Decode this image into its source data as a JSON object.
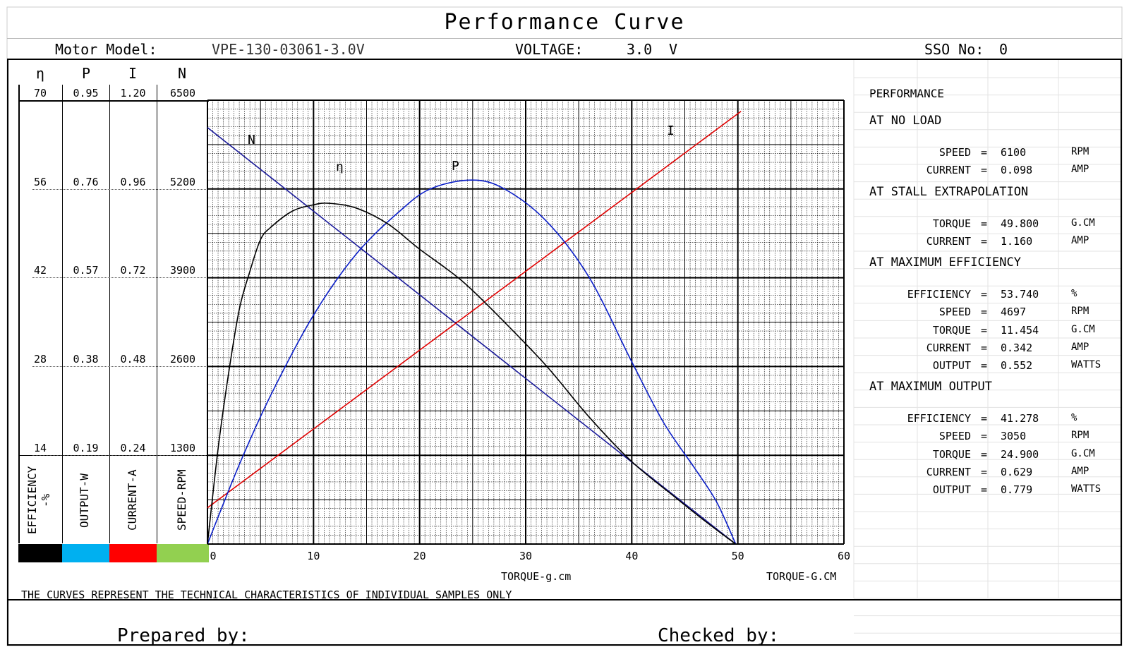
{
  "header": {
    "title": "Performance Curve",
    "model_label": "Motor Model:",
    "model_value": "VPE-130-03061-3.0V",
    "voltage_label": "VOLTAGE:",
    "voltage_value": "3.0",
    "voltage_unit": "V",
    "sso_label": "SSO No:",
    "sso_value": "0"
  },
  "axes_left": {
    "headers": [
      "η",
      "P",
      "I",
      "N"
    ],
    "rows": [
      [
        "70",
        "0.95",
        "1.20",
        "6500"
      ],
      [
        "56",
        "0.76",
        "0.96",
        "5200"
      ],
      [
        "42",
        "0.57",
        "0.72",
        "3900"
      ],
      [
        "28",
        "0.38",
        "0.48",
        "2600"
      ],
      [
        "14",
        "0.19",
        "0.24",
        "1300"
      ]
    ],
    "legend": [
      "EFFICIENCY -%",
      "OUTPUT-W",
      "CURRENT-A",
      "SPEED-RPM"
    ],
    "legend_colors": [
      "#000000",
      "#00b0f0",
      "#ff0000",
      "#92d050"
    ]
  },
  "chart_data": {
    "type": "line",
    "x_ticks": [
      "0",
      "10",
      "20",
      "30",
      "40",
      "50",
      "60"
    ],
    "xlim": [
      0,
      60
    ],
    "xlabel": "TORQUE-g.cm",
    "xlabel2": "TORQUE-G.CM",
    "grid": true,
    "series": [
      {
        "name": "N",
        "color": "#1a1a9a",
        "unit": "RPM",
        "ymax": 6500,
        "points": [
          [
            0,
            6100
          ],
          [
            49.8,
            0
          ]
        ]
      },
      {
        "name": "I",
        "color": "#e00000",
        "unit": "A",
        "ymax": 1.2,
        "points": [
          [
            0,
            0.098
          ],
          [
            50.3,
            1.17
          ]
        ]
      },
      {
        "name": "P",
        "color": "#0a1ec8",
        "unit": "W",
        "ymax": 0.95,
        "points": [
          [
            0,
            0
          ],
          [
            3,
            0.17
          ],
          [
            6,
            0.32
          ],
          [
            10,
            0.49
          ],
          [
            14,
            0.62
          ],
          [
            18,
            0.71
          ],
          [
            21,
            0.76
          ],
          [
            24.9,
            0.779
          ],
          [
            28,
            0.76
          ],
          [
            32,
            0.69
          ],
          [
            36,
            0.57
          ],
          [
            40,
            0.39
          ],
          [
            43,
            0.26
          ],
          [
            46,
            0.16
          ],
          [
            48,
            0.09
          ],
          [
            49.8,
            0
          ]
        ]
      },
      {
        "name": "η",
        "color": "#000000",
        "unit": "%",
        "ymax": 70,
        "points": [
          [
            0,
            0
          ],
          [
            1,
            15
          ],
          [
            2,
            27
          ],
          [
            3,
            37
          ],
          [
            4,
            43
          ],
          [
            5,
            48
          ],
          [
            6,
            50
          ],
          [
            8,
            52.5
          ],
          [
            10,
            53.5
          ],
          [
            11.45,
            53.74
          ],
          [
            14,
            53
          ],
          [
            17,
            50.5
          ],
          [
            20,
            46.5
          ],
          [
            24,
            41.5
          ],
          [
            28,
            35
          ],
          [
            32,
            28
          ],
          [
            36,
            20
          ],
          [
            40,
            13
          ],
          [
            44,
            7.5
          ],
          [
            47,
            3.5
          ],
          [
            49.8,
            0
          ]
        ]
      }
    ],
    "curve_labels": [
      "N",
      "η",
      "P",
      "I"
    ]
  },
  "performance": {
    "title": "PERFORMANCE",
    "no_load": {
      "title": "AT NO LOAD",
      "rows": [
        [
          "SPEED",
          "=",
          "6100",
          "RPM"
        ],
        [
          "CURRENT",
          "=",
          "0.098",
          "AMP"
        ]
      ]
    },
    "stall": {
      "title": "AT STALL EXTRAPOLATION",
      "rows": [
        [
          "TORQUE",
          "=",
          "49.800",
          "G.CM"
        ],
        [
          "CURRENT",
          "=",
          "1.160",
          "AMP"
        ]
      ]
    },
    "max_eff": {
      "title": "AT MAXIMUM EFFICIENCY",
      "rows": [
        [
          "EFFICIENCY",
          "=",
          "53.740",
          "%"
        ],
        [
          "SPEED",
          "=",
          "4697",
          "RPM"
        ],
        [
          "TORQUE",
          "=",
          "11.454",
          "G.CM"
        ],
        [
          "CURRENT",
          "=",
          "0.342",
          "AMP"
        ],
        [
          "OUTPUT",
          "=",
          "0.552",
          "WATTS"
        ]
      ]
    },
    "max_out": {
      "title": "AT MAXIMUM OUTPUT",
      "rows": [
        [
          "EFFICIENCY",
          "=",
          "41.278",
          "%"
        ],
        [
          "SPEED",
          "=",
          "3050",
          "RPM"
        ],
        [
          "TORQUE",
          "=",
          "24.900",
          "G.CM"
        ],
        [
          "CURRENT",
          "=",
          "0.629",
          "AMP"
        ],
        [
          "OUTPUT",
          "=",
          "0.779",
          "WATTS"
        ]
      ]
    }
  },
  "footer": {
    "note": "THE CURVES REPRESENT THE TECHNICAL CHARACTERISTICS OF INDIVIDUAL SAMPLES ONLY",
    "prepared": "Prepared by:",
    "checked": "Checked by:"
  }
}
